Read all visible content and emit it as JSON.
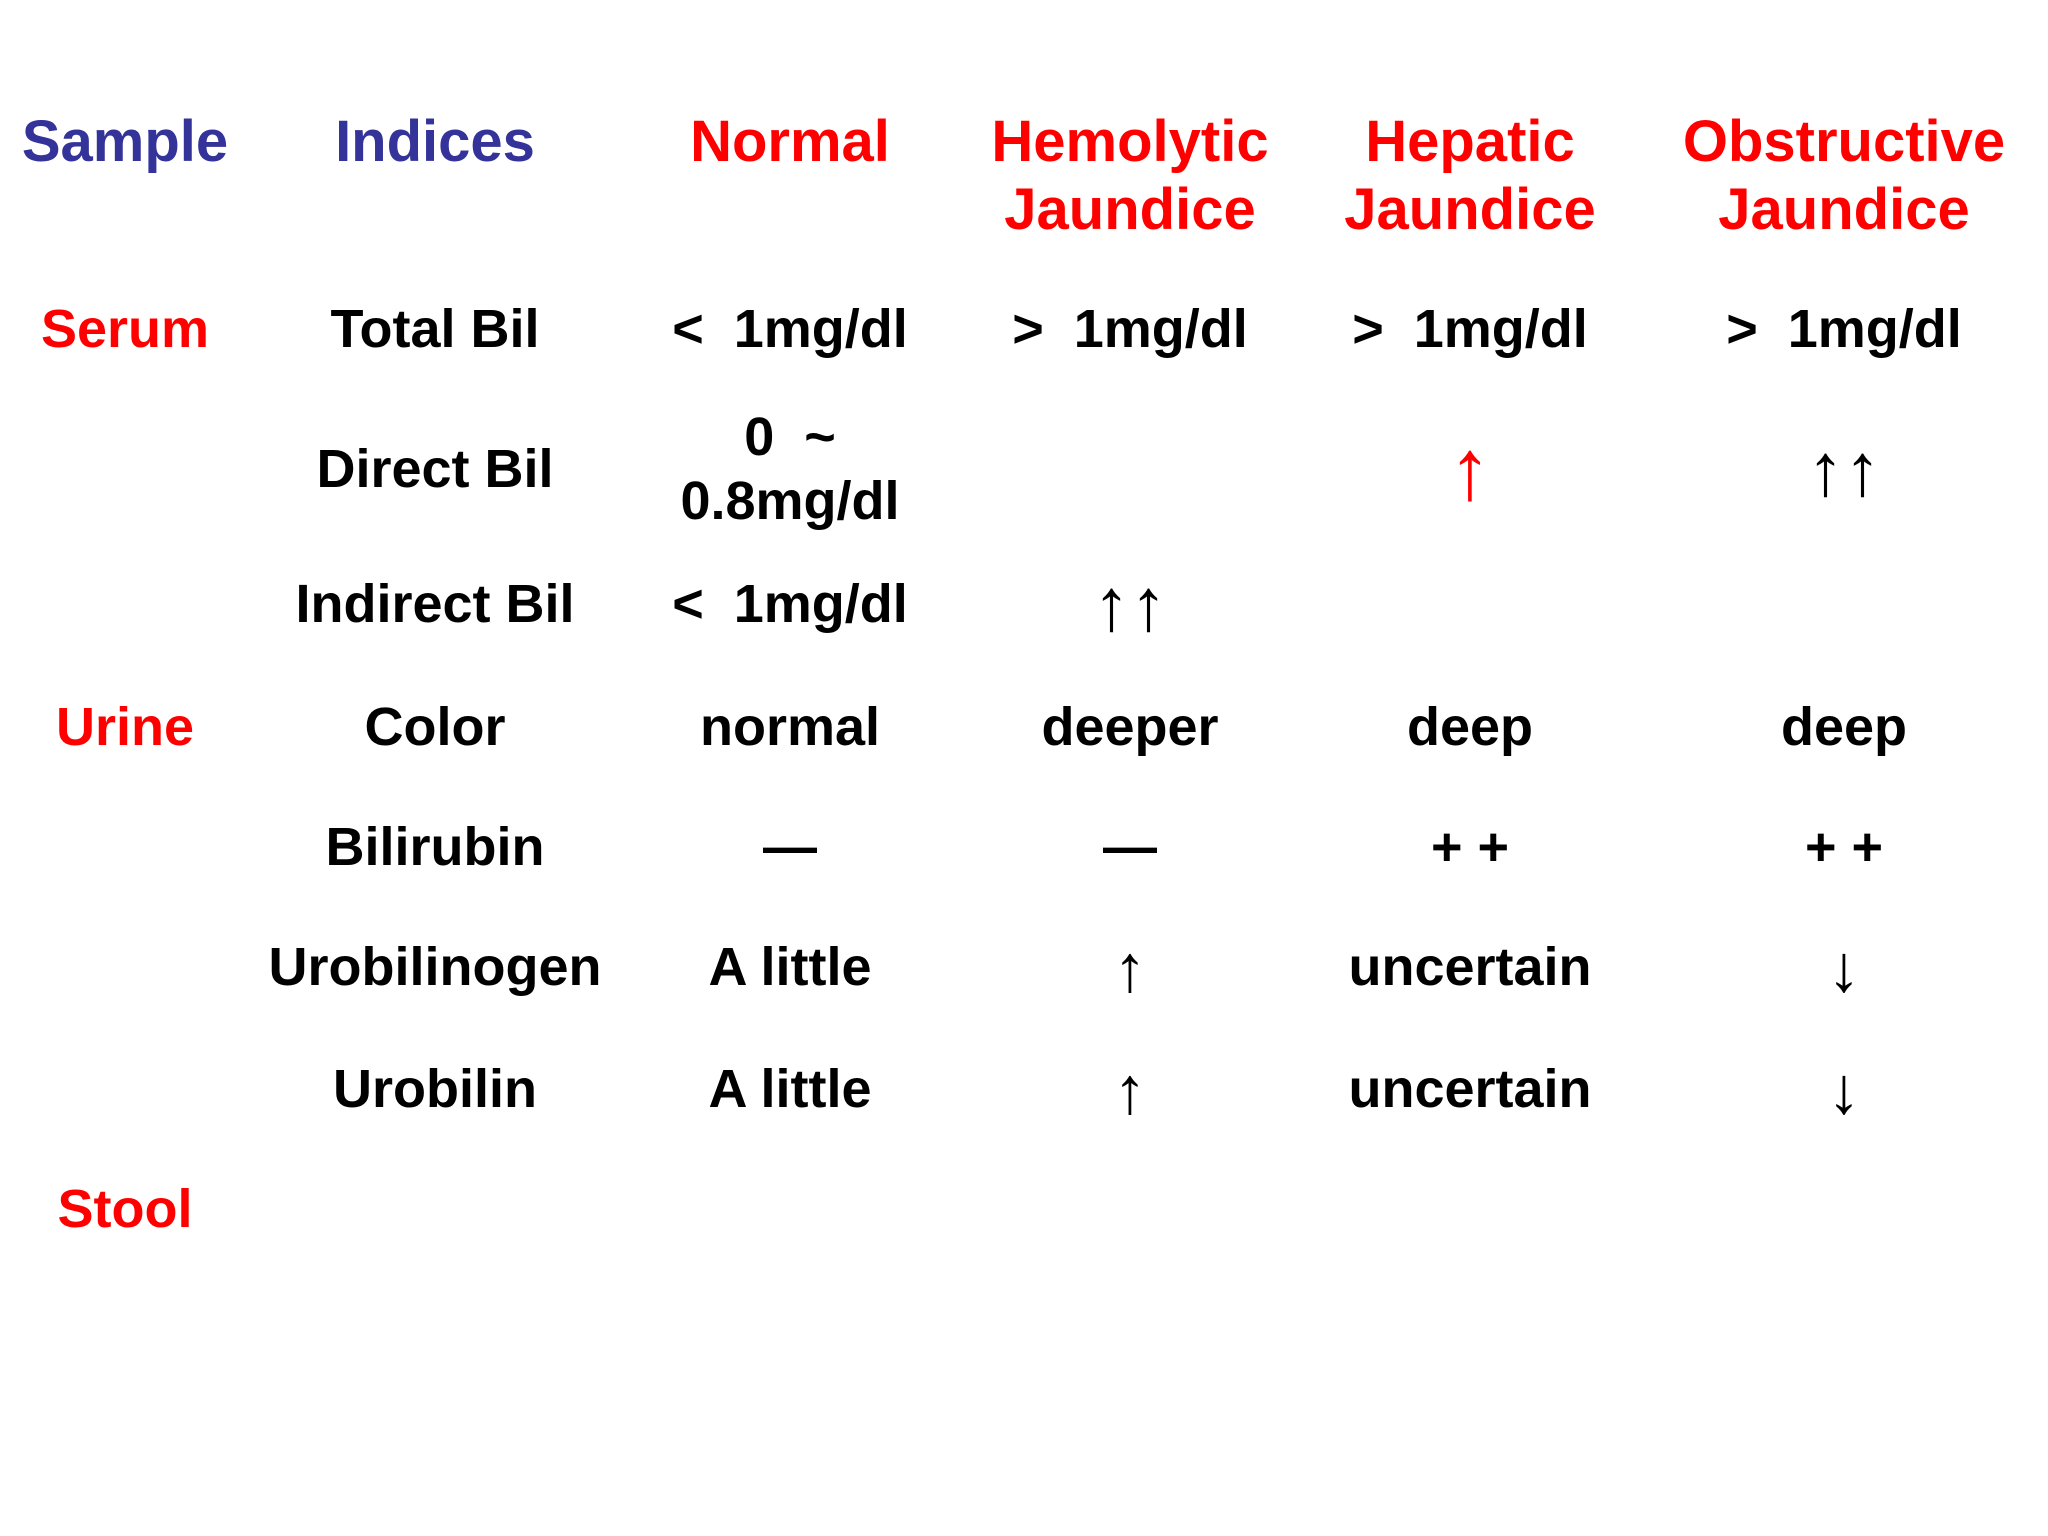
{
  "colors": {
    "header_blue": "#333399",
    "accent_red": "#ff0000",
    "text_black": "#000000",
    "background": "#ffffff"
  },
  "table": {
    "header": {
      "sample": "Sample",
      "indices": "Indices",
      "normal": "Normal",
      "hemolytic_line1": "Hemolytic",
      "hemolytic_line2": "Jaundice",
      "hepatic_line1": "Hepatic",
      "hepatic_line2": "Jaundice",
      "obstructive_line1": "Obstructive",
      "obstructive_line2": "Jaundice"
    },
    "rows": {
      "total_bil": {
        "sample": "Serum",
        "index": "Total Bil",
        "normal": "<  1mg/dl",
        "hemolytic": ">  1mg/dl",
        "hepatic": ">  1mg/dl",
        "obstructive": ">  1mg/dl"
      },
      "direct_bil": {
        "sample": "",
        "index": "Direct Bil",
        "normal_line1": "0  ~",
        "normal_line2": "0.8mg/dl",
        "hemolytic": "",
        "hepatic": "↑",
        "obstructive": "↑↑"
      },
      "indirect_bil": {
        "sample": "",
        "index": "Indirect Bil",
        "normal": "<  1mg/dl",
        "hemolytic": "↑↑",
        "hepatic": "",
        "obstructive": ""
      },
      "color": {
        "sample": "Urine",
        "index": "Color",
        "normal": "normal",
        "hemolytic": "deeper",
        "hepatic": "deep",
        "obstructive": "deep"
      },
      "bilirubin": {
        "sample": "",
        "index": "Bilirubin",
        "normal": "—",
        "hemolytic": "—",
        "hepatic": "+ +",
        "obstructive": "+ +"
      },
      "urobilinogen": {
        "sample": "",
        "index": "Urobilinogen",
        "normal": "A little",
        "hemolytic": "↑",
        "hepatic": "uncertain",
        "obstructive": "↓"
      },
      "urobilin": {
        "sample": "",
        "index": "Urobilin",
        "normal": "A little",
        "hemolytic": "↑",
        "hepatic": "uncertain",
        "obstructive": "↓"
      },
      "stool": {
        "sample": "Stool",
        "index": "",
        "normal": "",
        "hemolytic": "",
        "hepatic": "",
        "obstructive": ""
      }
    }
  }
}
